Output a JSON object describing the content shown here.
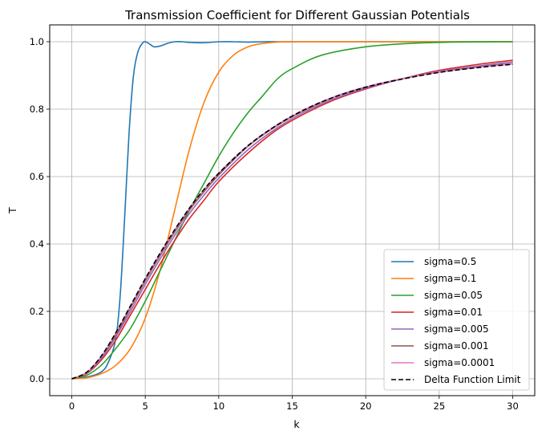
{
  "chart_data": {
    "type": "line",
    "title": "Transmission Coefficient for Different Gaussian Potentials",
    "xlabel": "k",
    "ylabel": "T",
    "xlim": [
      -1.5,
      31.5
    ],
    "ylim": [
      -0.05,
      1.05
    ],
    "xticks": [
      0,
      5,
      10,
      15,
      20,
      25,
      30
    ],
    "yticks": [
      0.0,
      0.2,
      0.4,
      0.6,
      0.8,
      1.0
    ],
    "xtick_labels": [
      "0",
      "5",
      "10",
      "15",
      "20",
      "25",
      "30"
    ],
    "ytick_labels": [
      "0.0",
      "0.2",
      "0.4",
      "0.6",
      "0.8",
      "1.0"
    ],
    "grid": true,
    "legend_position": "lower-right",
    "series": [
      {
        "name": "sigma=0.5",
        "color": "#1f77b4",
        "dash": "solid",
        "x": [
          0,
          1,
          2,
          2.5,
          3,
          3.3,
          3.6,
          3.9,
          4.2,
          4.5,
          4.8,
          5.0,
          5.3,
          5.6,
          6.0,
          6.5,
          7.0,
          7.5,
          8.0,
          9.0,
          10.0,
          11.0,
          12.0,
          13.0,
          14.0,
          15.0,
          20.0,
          25.0,
          30.0
        ],
        "y": [
          0.0,
          0.005,
          0.02,
          0.05,
          0.12,
          0.25,
          0.48,
          0.73,
          0.9,
          0.97,
          0.995,
          1.0,
          0.993,
          0.985,
          0.987,
          0.995,
          1.0,
          1.0,
          0.998,
          0.997,
          1.0,
          1.0,
          0.999,
          1.0,
          1.0,
          1.0,
          1.0,
          1.0,
          1.0
        ]
      },
      {
        "name": "sigma=0.1",
        "color": "#ff7f0e",
        "dash": "solid",
        "x": [
          0,
          1,
          2,
          3,
          4,
          5,
          6,
          7,
          8,
          9,
          10,
          11,
          12,
          13,
          14,
          15,
          17,
          20,
          25,
          30
        ],
        "y": [
          0.0,
          0.003,
          0.015,
          0.04,
          0.09,
          0.18,
          0.32,
          0.5,
          0.68,
          0.82,
          0.91,
          0.96,
          0.985,
          0.995,
          0.999,
          1.0,
          1.0,
          1.0,
          1.0,
          1.0
        ]
      },
      {
        "name": "sigma=0.05",
        "color": "#2ca02c",
        "dash": "solid",
        "x": [
          0,
          1,
          2,
          3,
          4,
          5,
          6,
          7,
          8,
          9,
          10,
          11,
          12,
          13,
          14,
          15,
          17,
          20,
          23,
          26,
          30
        ],
        "y": [
          0.0,
          0.01,
          0.04,
          0.09,
          0.15,
          0.23,
          0.32,
          0.41,
          0.5,
          0.58,
          0.66,
          0.73,
          0.79,
          0.84,
          0.89,
          0.92,
          0.96,
          0.985,
          0.995,
          0.999,
          1.0
        ]
      },
      {
        "name": "sigma=0.01",
        "color": "#d62728",
        "dash": "solid",
        "x": [
          0,
          1,
          2,
          3,
          4,
          5,
          6,
          7,
          8,
          9,
          10,
          12,
          14,
          16,
          18,
          20,
          22,
          25,
          28,
          30
        ],
        "y": [
          0.0,
          0.015,
          0.055,
          0.115,
          0.19,
          0.265,
          0.34,
          0.41,
          0.475,
          0.53,
          0.585,
          0.67,
          0.74,
          0.79,
          0.83,
          0.86,
          0.885,
          0.915,
          0.935,
          0.945
        ]
      },
      {
        "name": "sigma=0.005",
        "color": "#9467bd",
        "dash": "solid",
        "x": [
          0,
          1,
          2,
          3,
          4,
          5,
          6,
          7,
          8,
          9,
          10,
          12,
          14,
          16,
          18,
          20,
          22,
          25,
          28,
          30
        ],
        "y": [
          0.0,
          0.017,
          0.06,
          0.125,
          0.2,
          0.28,
          0.355,
          0.425,
          0.49,
          0.545,
          0.595,
          0.68,
          0.745,
          0.795,
          0.833,
          0.862,
          0.885,
          0.912,
          0.93,
          0.94
        ]
      },
      {
        "name": "sigma=0.001",
        "color": "#8c564b",
        "dash": "solid",
        "x": [
          0,
          1,
          2,
          3,
          4,
          5,
          6,
          7,
          8,
          9,
          10,
          12,
          14,
          16,
          18,
          20,
          22,
          25,
          28,
          30
        ],
        "y": [
          0.0,
          0.018,
          0.065,
          0.13,
          0.21,
          0.29,
          0.365,
          0.435,
          0.5,
          0.555,
          0.605,
          0.69,
          0.752,
          0.8,
          0.838,
          0.865,
          0.886,
          0.91,
          0.927,
          0.935
        ]
      },
      {
        "name": "sigma=0.0001",
        "color": "#e377c2",
        "dash": "solid",
        "x": [
          0,
          1,
          2,
          3,
          4,
          5,
          6,
          7,
          8,
          9,
          10,
          12,
          14,
          16,
          18,
          20,
          22,
          25,
          28,
          30
        ],
        "y": [
          0.0,
          0.018,
          0.065,
          0.135,
          0.215,
          0.295,
          0.37,
          0.44,
          0.505,
          0.56,
          0.61,
          0.692,
          0.754,
          0.802,
          0.839,
          0.866,
          0.886,
          0.91,
          0.926,
          0.934
        ]
      },
      {
        "name": "Delta Function Limit",
        "color": "#000000",
        "dash": "dashed",
        "x": [
          0,
          1,
          2,
          3,
          4,
          5,
          6,
          7,
          8,
          9,
          10,
          12,
          14,
          16,
          18,
          20,
          22,
          25,
          28,
          30
        ],
        "y": [
          0.0,
          0.019,
          0.067,
          0.137,
          0.217,
          0.297,
          0.372,
          0.442,
          0.506,
          0.562,
          0.61,
          0.692,
          0.754,
          0.802,
          0.838,
          0.865,
          0.885,
          0.909,
          0.925,
          0.933
        ]
      }
    ]
  }
}
